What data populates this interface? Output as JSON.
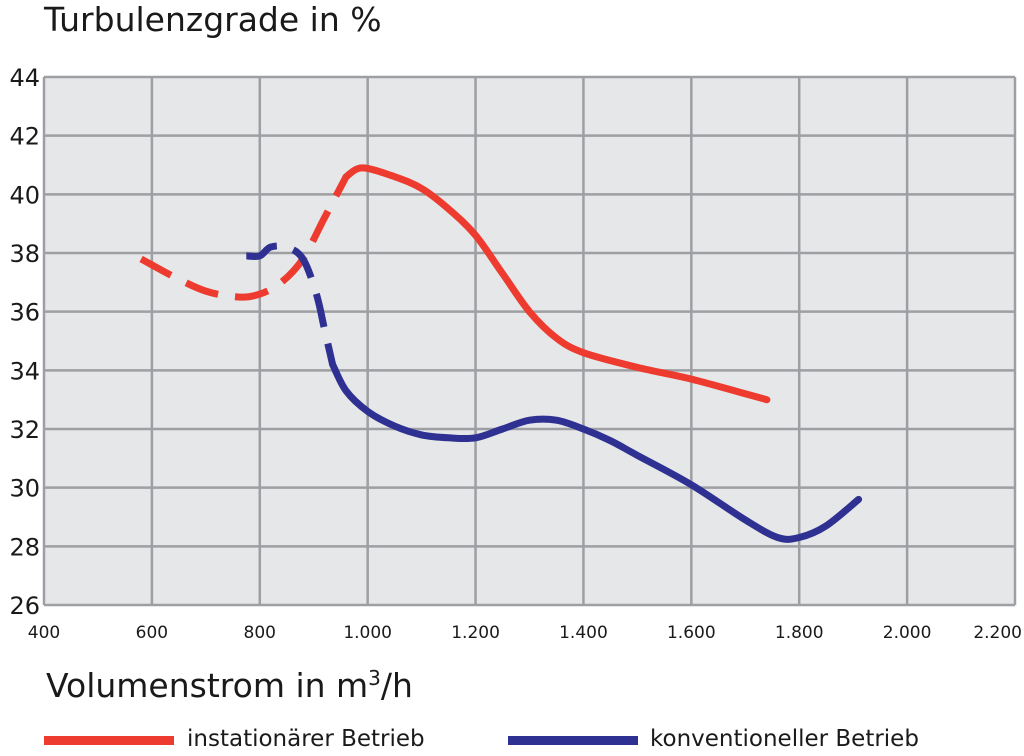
{
  "chart_data": {
    "type": "line",
    "title": "Turbulenzgrade in %",
    "xlabel": "Volumenstrom in m",
    "xlabel_sup": "3",
    "xlabel_tail": "/h",
    "ylabel": "",
    "xlim": [
      400,
      2200
    ],
    "ylim": [
      26,
      44
    ],
    "grid": true,
    "x_ticks": [
      400,
      600,
      800,
      1000,
      1200,
      1400,
      1600,
      1800,
      2000,
      2200
    ],
    "x_tick_labels": [
      "400",
      "600",
      "800",
      "1.000",
      "1.200",
      "1.400",
      "1.600",
      "1.800",
      "2.000",
      "2.200"
    ],
    "y_ticks": [
      26,
      28,
      30,
      32,
      34,
      36,
      38,
      40,
      42,
      44
    ],
    "y_tick_labels": [
      "26",
      "28",
      "30",
      "32",
      "34",
      "36",
      "38",
      "40",
      "42",
      "44"
    ],
    "legend_position": "bottom",
    "series": [
      {
        "name": "instationärer Betrieb",
        "color": "#ee3b2f",
        "dashed_until_x": 960,
        "points": [
          [
            580,
            37.8
          ],
          [
            640,
            37.2
          ],
          [
            700,
            36.7
          ],
          [
            760,
            36.5
          ],
          [
            800,
            36.6
          ],
          [
            840,
            37.0
          ],
          [
            880,
            37.8
          ],
          [
            920,
            39.2
          ],
          [
            960,
            40.6
          ],
          [
            990,
            40.9
          ],
          [
            1050,
            40.6
          ],
          [
            1100,
            40.2
          ],
          [
            1150,
            39.5
          ],
          [
            1200,
            38.6
          ],
          [
            1250,
            37.3
          ],
          [
            1300,
            36.0
          ],
          [
            1350,
            35.1
          ],
          [
            1400,
            34.6
          ],
          [
            1500,
            34.1
          ],
          [
            1600,
            33.7
          ],
          [
            1700,
            33.2
          ],
          [
            1740,
            33.0
          ]
        ]
      },
      {
        "name": "konventioneller Betrieb",
        "color": "#2e3191",
        "dashed_until_x": 935,
        "points": [
          [
            775,
            37.9
          ],
          [
            800,
            37.9
          ],
          [
            820,
            38.2
          ],
          [
            850,
            38.2
          ],
          [
            880,
            37.8
          ],
          [
            905,
            36.6
          ],
          [
            920,
            35.4
          ],
          [
            935,
            34.2
          ],
          [
            960,
            33.3
          ],
          [
            1000,
            32.6
          ],
          [
            1050,
            32.1
          ],
          [
            1100,
            31.8
          ],
          [
            1150,
            31.7
          ],
          [
            1200,
            31.7
          ],
          [
            1250,
            32.0
          ],
          [
            1300,
            32.3
          ],
          [
            1350,
            32.3
          ],
          [
            1400,
            32.0
          ],
          [
            1450,
            31.6
          ],
          [
            1500,
            31.1
          ],
          [
            1600,
            30.1
          ],
          [
            1700,
            28.9
          ],
          [
            1760,
            28.3
          ],
          [
            1800,
            28.3
          ],
          [
            1850,
            28.7
          ],
          [
            1910,
            29.6
          ]
        ]
      }
    ]
  }
}
